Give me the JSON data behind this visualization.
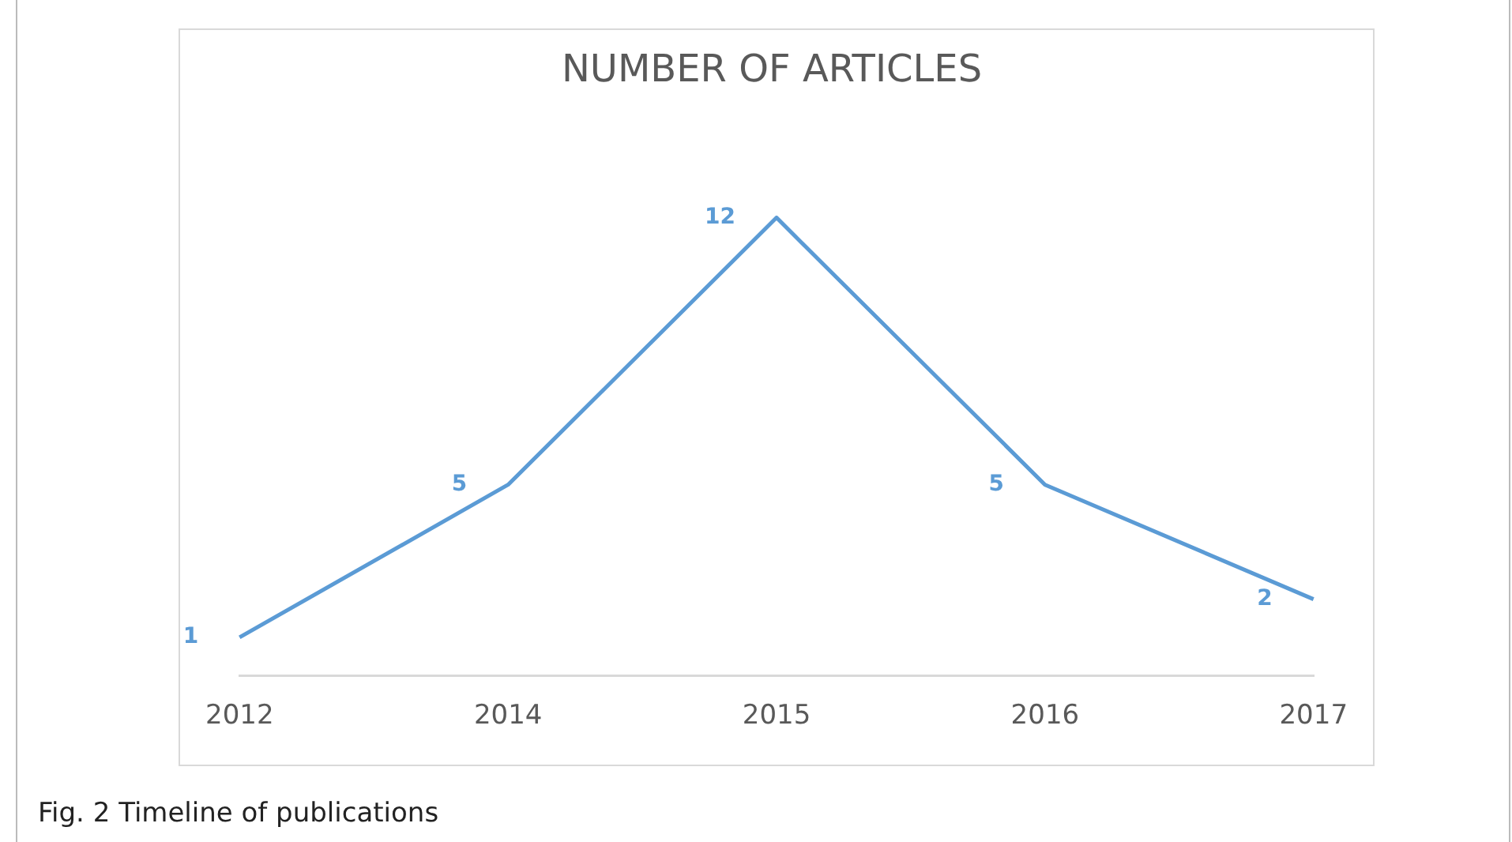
{
  "chart_data": {
    "type": "line",
    "title": "NUMBER OF ARTICLES",
    "categories": [
      "2012",
      "2014",
      "2015",
      "2016",
      "2017"
    ],
    "series": [
      {
        "color": "#5b9bd5",
        "values": [
          1,
          5,
          12,
          5,
          2
        ]
      }
    ],
    "tick_labels": "x",
    "data_labels": true,
    "grid": false,
    "legend": false,
    "marker": "none",
    "annotations": [
      "Fig. 2 Timeline of publications"
    ]
  }
}
